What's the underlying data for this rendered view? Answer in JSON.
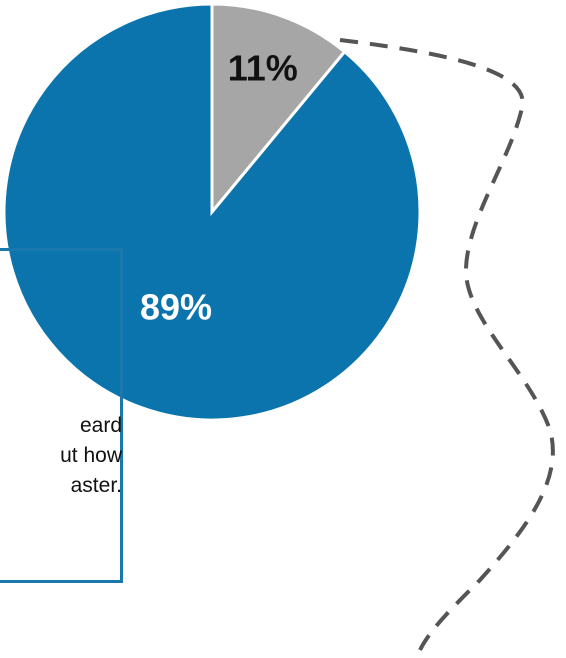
{
  "chart_data": {
    "type": "pie",
    "title": "",
    "slices": [
      {
        "label": "",
        "value": 11,
        "display": "11%",
        "color": "#a6a6a6",
        "label_color": "#111111"
      },
      {
        "label": "",
        "value": 89,
        "display": "89%",
        "color": "#0b74ad",
        "label_color": "#ffffff"
      }
    ],
    "legend": "none"
  },
  "callout": {
    "lines": [
      "eard",
      "ut how",
      "aster."
    ],
    "border_color": "#1a78ad"
  },
  "connector": {
    "style": "dashed",
    "color": "#555555"
  }
}
